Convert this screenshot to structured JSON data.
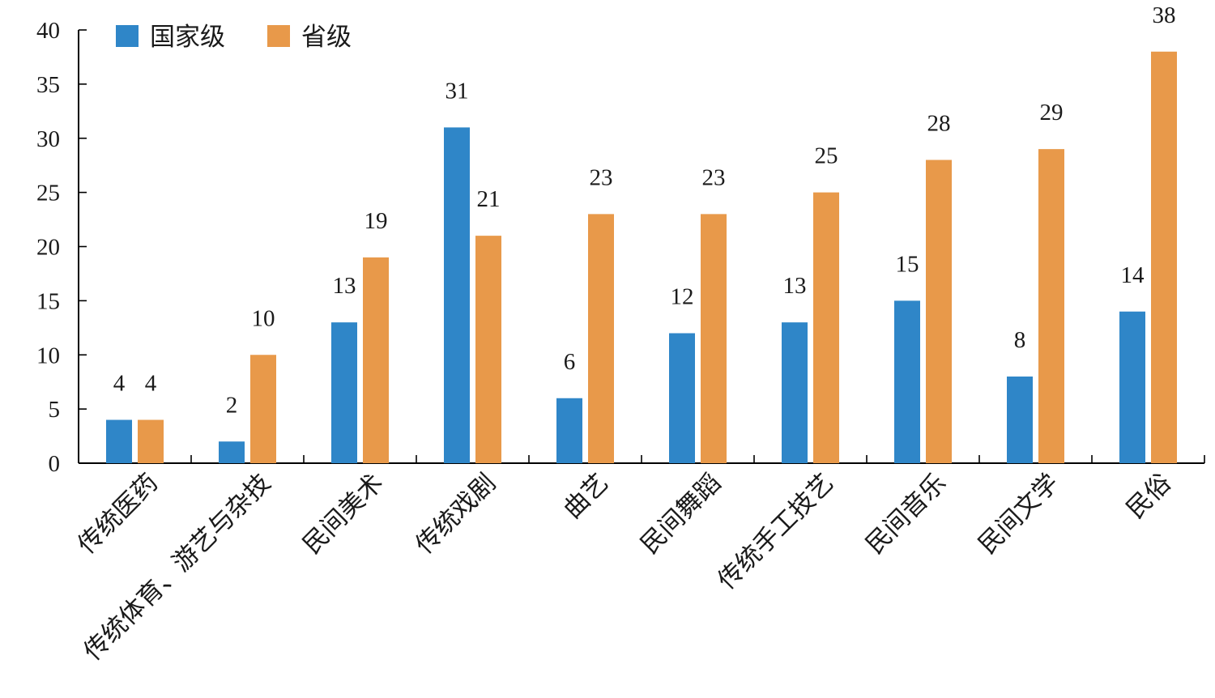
{
  "chart_data": {
    "type": "bar",
    "categories": [
      "传统医药",
      "传统体育、游艺与杂技",
      "民间美术",
      "传统戏剧",
      "曲艺",
      "民间舞蹈",
      "传统手工技艺",
      "民间音乐",
      "民间文学",
      "民俗"
    ],
    "series": [
      {
        "name": "国家级",
        "values": [
          4,
          2,
          13,
          31,
          6,
          12,
          13,
          15,
          8,
          14
        ],
        "color": "#2f86c8"
      },
      {
        "name": "省级",
        "values": [
          4,
          10,
          19,
          21,
          23,
          23,
          25,
          28,
          29,
          38
        ],
        "color": "#e8994a"
      }
    ],
    "ylim": [
      0,
      40
    ],
    "yticks": [
      0,
      5,
      10,
      15,
      20,
      25,
      30,
      35,
      40
    ],
    "grid": false,
    "legend": "top-left",
    "data_labels": true
  }
}
